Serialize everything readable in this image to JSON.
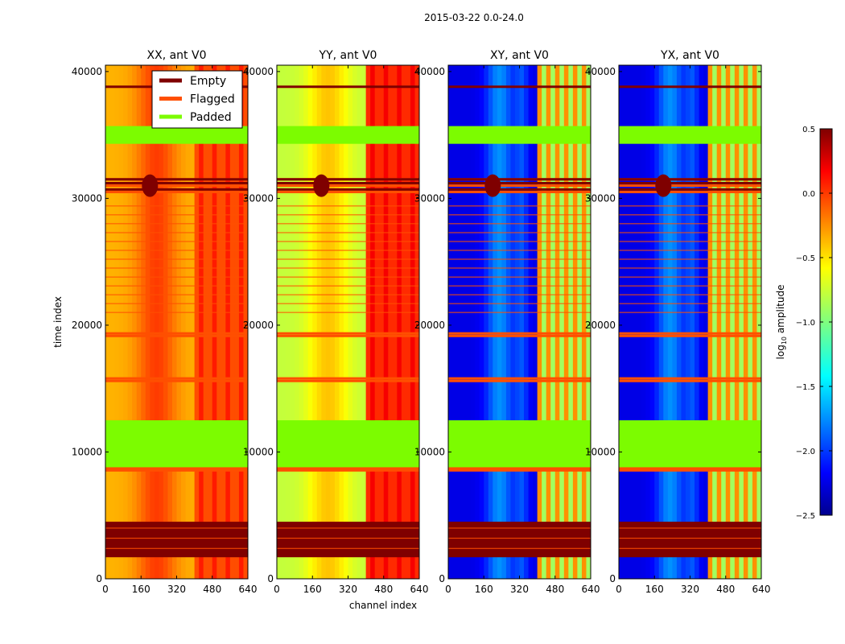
{
  "suptitle": "2015-03-22 0.0-24.0",
  "xlabel": "channel index",
  "ylabel": "time index",
  "colorbar": {
    "label_prefix": "log",
    "label_sub": "10",
    "label_suffix": " amplitude",
    "range": [
      -2.5,
      0.5
    ],
    "ticks": [
      "0.5",
      "0.0",
      "−0.5",
      "−1.0",
      "−1.5",
      "−2.0",
      "−2.5"
    ],
    "tick_values": [
      0.5,
      0.0,
      -0.5,
      -1.0,
      -1.5,
      -2.0,
      -2.5
    ],
    "colormap": "jet"
  },
  "legend": [
    {
      "label": "Empty",
      "color": "#7f0000"
    },
    {
      "label": "Flagged",
      "color": "#ff4f00"
    },
    {
      "label": "Padded",
      "color": "#7cfc00"
    }
  ],
  "chart_data": {
    "type": "heatmap",
    "title": "2015-03-22 0.0-24.0",
    "xlabel": "channel index",
    "ylabel": "time index",
    "xlim": [
      0,
      640
    ],
    "ylim": [
      0,
      40500
    ],
    "x_ticks": [
      "0",
      "160",
      "320",
      "480",
      "640"
    ],
    "x_tick_values": [
      0,
      160,
      320,
      480,
      640
    ],
    "y_ticks": [
      "0",
      "10000",
      "20000",
      "30000",
      "40000"
    ],
    "y_tick_values": [
      0,
      10000,
      20000,
      30000,
      40000
    ],
    "value_label": "log10 amplitude",
    "value_range": [
      -2.5,
      0.5
    ],
    "panels": [
      {
        "title": "XX, ant V0",
        "base_value": -0.4,
        "band_value": -0.1,
        "diagonal": true
      },
      {
        "title": "YY, ant V0",
        "base_value": -0.8,
        "band_value": 0.0,
        "diagonal": true
      },
      {
        "title": "XY, ant V0",
        "base_value": -2.2,
        "band_value": -0.9,
        "diagonal": false
      },
      {
        "title": "YX, ant V0",
        "base_value": -2.2,
        "band_value": -0.9,
        "diagonal": false
      }
    ],
    "empty_rows": [
      [
        1700,
        4500
      ]
    ],
    "padded_rows": [
      [
        8500,
        12500
      ],
      [
        34300,
        35700
      ]
    ],
    "flagged_rows": [
      8550,
      8700,
      15600,
      15800,
      19150,
      19350,
      30500,
      31000,
      31500
    ],
    "empty_lines": [
      30700,
      31200,
      31500,
      38800
    ]
  }
}
